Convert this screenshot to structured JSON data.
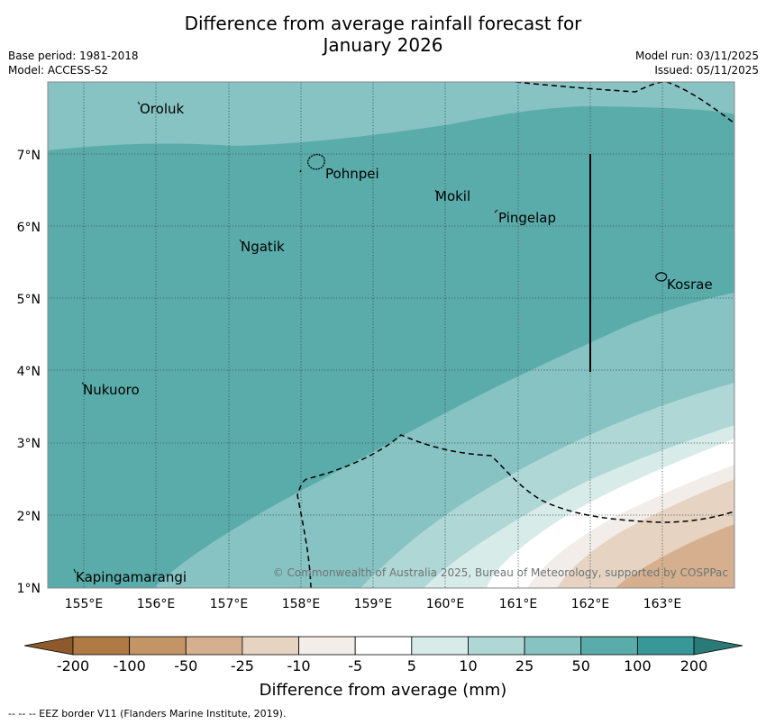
{
  "title": {
    "line1": "Difference from average rainfall forecast for",
    "line2": "January 2026"
  },
  "meta": {
    "base_period": "Base period: 1981-2018",
    "model": "Model: ACCESS-S2",
    "model_run": "Model run: 03/11/2025",
    "issued": "Issued: 05/11/2025"
  },
  "map": {
    "lon_labels": [
      "155°E",
      "156°E",
      "157°E",
      "158°E",
      "159°E",
      "160°E",
      "161°E",
      "162°E",
      "163°E"
    ],
    "lat_labels": [
      "1°N",
      "2°N",
      "3°N",
      "4°N",
      "5°N",
      "6°N",
      "7°N"
    ],
    "places": [
      "Oroluk",
      "Pohnpei",
      "Mokil",
      "Pingelap",
      "Ngatik",
      "Kosrae",
      "Nukuoro",
      "Kapingamarangi"
    ],
    "copyright": "© Commonwealth of Australia 2025, Bureau of Meteorology, supported by COSPPac"
  },
  "colorbar": {
    "labels": [
      "-200",
      "-100",
      "-50",
      "-25",
      "-10",
      "-5",
      "5",
      "10",
      "25",
      "50",
      "100",
      "200"
    ],
    "colors": [
      "#8c5a2b",
      "#b07a45",
      "#c39466",
      "#d6b08e",
      "#e6d3c2",
      "#f2ede9",
      "#ffffff",
      "#d7ebe9",
      "#aed7d6",
      "#86c3c2",
      "#5aacab",
      "#379897",
      "#2a7b78"
    ],
    "title": "Difference from average (mm)"
  },
  "footnote": "--  --  -- EEZ border V11 (Flanders Marine Institute, 2019)."
}
